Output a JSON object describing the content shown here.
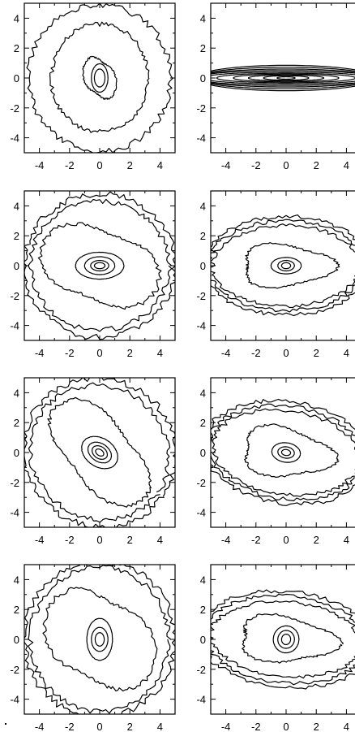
{
  "chart_data": [
    {
      "type": "contour",
      "row": 1,
      "column": 1,
      "xlim": [
        -5,
        5
      ],
      "ylim": [
        -5,
        5
      ],
      "xticks": [
        "-4",
        "-2",
        "0",
        "2",
        "4"
      ],
      "yticks": [
        "4",
        "2",
        "0",
        "-2",
        "-4"
      ],
      "morphology": "face-on-spiral",
      "contours": [
        {
          "a": 0.35,
          "b": 0.6
        },
        {
          "a": 0.55,
          "b": 0.95
        },
        {
          "a": 0.9,
          "b": 1.5
        },
        {
          "a": 3.2,
          "b": 3.6
        },
        {
          "a": 4.7,
          "b": 4.9
        }
      ],
      "angle_deg": 0
    },
    {
      "type": "contour",
      "row": 1,
      "column": 2,
      "xlim": [
        -5,
        5
      ],
      "ylim": [
        -5,
        5
      ],
      "xticks": [
        "-4",
        "-2",
        "0",
        "2",
        "4"
      ],
      "yticks": [
        "4",
        "2",
        "0",
        "-2",
        "-4"
      ],
      "morphology": "edge-on-disk",
      "contours": [
        {
          "a": 0.6,
          "b": 0.08
        },
        {
          "a": 1.5,
          "b": 0.15
        },
        {
          "a": 2.5,
          "b": 0.2
        },
        {
          "a": 3.5,
          "b": 0.26
        },
        {
          "a": 4.6,
          "b": 0.32
        },
        {
          "a": 5.5,
          "b": 0.4
        },
        {
          "a": 6,
          "b": 0.5
        },
        {
          "a": 6,
          "b": 0.6
        },
        {
          "a": 6,
          "b": 0.72
        },
        {
          "a": 6,
          "b": 0.85
        }
      ],
      "angle_deg": 0
    },
    {
      "type": "contour",
      "row": 2,
      "column": 1,
      "xlim": [
        -5,
        5
      ],
      "ylim": [
        -5,
        5
      ],
      "xticks": [
        "-4",
        "-2",
        "0",
        "2",
        "4"
      ],
      "yticks": [
        "4",
        "2",
        "0",
        "-2",
        "-4"
      ],
      "morphology": "face-on-spiral",
      "contours": [
        {
          "a": 0.35,
          "b": 0.2
        },
        {
          "a": 0.6,
          "b": 0.35
        },
        {
          "a": 1.0,
          "b": 0.6
        },
        {
          "a": 1.6,
          "b": 0.9
        },
        {
          "a": 3.2,
          "b": 3.0
        },
        {
          "a": 4.6,
          "b": 4.3
        },
        {
          "a": 5.0,
          "b": 4.8
        }
      ],
      "angle_deg": 0
    },
    {
      "type": "contour",
      "row": 2,
      "column": 2,
      "xlim": [
        -5,
        5
      ],
      "ylim": [
        -5,
        5
      ],
      "xticks": [
        "-4",
        "-2",
        "0",
        "2",
        "4"
      ],
      "yticks": [
        "4",
        "2",
        "0",
        "-2",
        "-4"
      ],
      "morphology": "inclined-disk",
      "contours": [
        {
          "a": 0.3,
          "b": 0.2
        },
        {
          "a": 0.55,
          "b": 0.35
        },
        {
          "a": 1.0,
          "b": 0.55
        },
        {
          "a": 3.0,
          "b": 1.4
        },
        {
          "a": 4.9,
          "b": 2.7
        },
        {
          "a": 5.2,
          "b": 3.0
        },
        {
          "a": 5.5,
          "b": 3.3
        }
      ],
      "angle_deg": 0
    },
    {
      "type": "contour",
      "row": 3,
      "column": 1,
      "xlim": [
        -5,
        5
      ],
      "ylim": [
        -5,
        5
      ],
      "xticks": [
        "-4",
        "-2",
        "0",
        "2",
        "4"
      ],
      "yticks": [
        "4",
        "2",
        "0",
        "-2",
        "-4"
      ],
      "morphology": "face-on-spiral",
      "contours": [
        {
          "a": 0.3,
          "b": 0.2
        },
        {
          "a": 0.55,
          "b": 0.4
        },
        {
          "a": 0.85,
          "b": 0.6
        },
        {
          "a": 1.3,
          "b": 0.95
        },
        {
          "a": 3.4,
          "b": 2.6
        },
        {
          "a": 4.7,
          "b": 4.4
        },
        {
          "a": 5.1,
          "b": 4.9
        }
      ],
      "angle_deg": -35
    },
    {
      "type": "contour",
      "row": 3,
      "column": 2,
      "xlim": [
        -5,
        5
      ],
      "ylim": [
        -5,
        5
      ],
      "xticks": [
        "-4",
        "-2",
        "0",
        "2",
        "4"
      ],
      "yticks": [
        "4",
        "2",
        "0",
        "-2",
        "-4"
      ],
      "morphology": "inclined-disk",
      "contours": [
        {
          "a": 0.3,
          "b": 0.2
        },
        {
          "a": 0.55,
          "b": 0.38
        },
        {
          "a": 0.95,
          "b": 0.65
        },
        {
          "a": 3.0,
          "b": 1.6
        },
        {
          "a": 4.9,
          "b": 2.8
        },
        {
          "a": 5.2,
          "b": 3.1
        },
        {
          "a": 5.5,
          "b": 3.4
        }
      ],
      "angle_deg": -8
    },
    {
      "type": "contour",
      "row": 4,
      "column": 1,
      "xlim": [
        -5,
        5
      ],
      "ylim": [
        -5,
        5
      ],
      "xticks": [
        "-4",
        "-2",
        "0",
        "2",
        "4"
      ],
      "yticks": [
        "4",
        "2",
        "0",
        "-2",
        "-4"
      ],
      "morphology": "face-on-spiral",
      "contours": [
        {
          "a": 0.3,
          "b": 0.45
        },
        {
          "a": 0.55,
          "b": 0.8
        },
        {
          "a": 0.85,
          "b": 1.4
        },
        {
          "a": 3.0,
          "b": 3.6
        },
        {
          "a": 4.6,
          "b": 4.8
        },
        {
          "a": 5.0,
          "b": 5.2
        }
      ],
      "angle_deg": 0
    },
    {
      "type": "contour",
      "row": 4,
      "column": 2,
      "xlim": [
        -5,
        5
      ],
      "ylim": [
        -5,
        5
      ],
      "xticks": [
        "-4",
        "-2",
        "0",
        "2",
        "4"
      ],
      "yticks": [
        "4",
        "2",
        "0",
        "-2",
        "-4"
      ],
      "morphology": "inclined-disk",
      "contours": [
        {
          "a": 0.3,
          "b": 0.35
        },
        {
          "a": 0.55,
          "b": 0.6
        },
        {
          "a": 0.85,
          "b": 0.9
        },
        {
          "a": 3.2,
          "b": 1.5
        },
        {
          "a": 5.0,
          "b": 2.5
        },
        {
          "a": 5.4,
          "b": 2.9
        },
        {
          "a": 5.8,
          "b": 3.2
        }
      ],
      "angle_deg": -5
    }
  ]
}
